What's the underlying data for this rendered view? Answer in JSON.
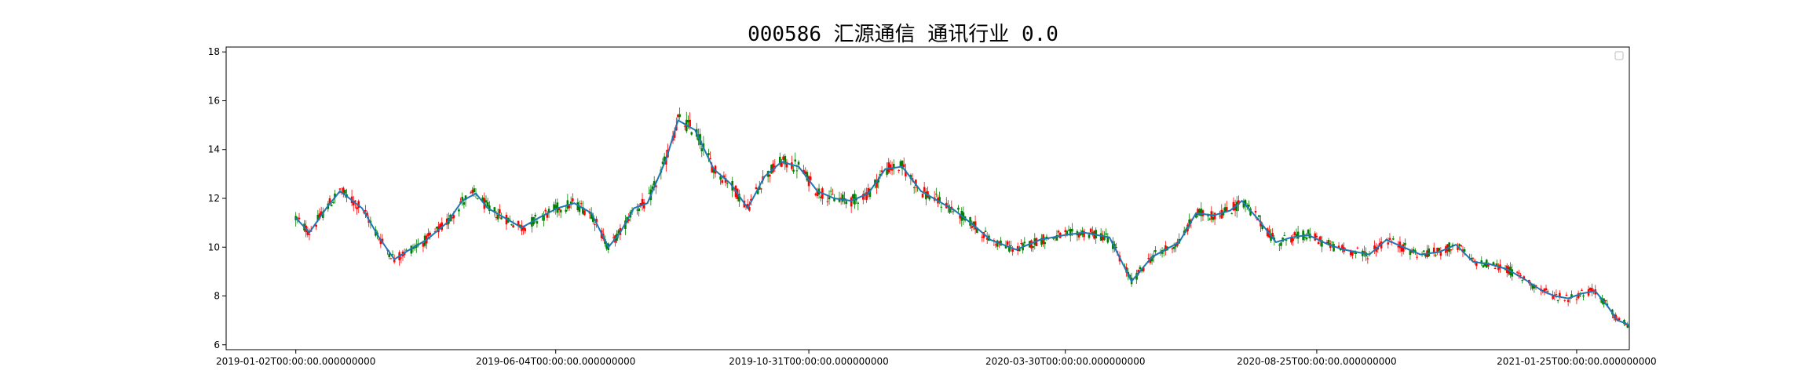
{
  "chart_data": {
    "type": "candlestick",
    "title": "000586 汇源通信 通讯行业 0.0",
    "xlabel": "",
    "ylabel": "",
    "ylim": [
      5.8,
      18.2
    ],
    "x_tick_labels": [
      "2019-01-02T00:00:00.000000000",
      "2019-06-04T00:00:00.000000000",
      "2019-10-31T00:00:00.000000000",
      "2020-03-30T00:00:00.000000000",
      "2020-08-25T00:00:00.000000000",
      "2021-01-25T00:00:00.000000000"
    ],
    "y_ticks": [
      6,
      8,
      10,
      12,
      14,
      16,
      18
    ],
    "x_range": [
      "2018-11-22",
      "2021-02-25"
    ],
    "legend": "top-right (empty box)",
    "grid": false,
    "colors": {
      "up": "#ff0000",
      "down": "#008000",
      "ma": "#1f77b4",
      "axes": "#000000"
    },
    "series": [
      {
        "name": "",
        "type": "line",
        "points": [
          [
            "2019-01-02",
            11.2
          ],
          [
            "2019-01-10",
            10.6
          ],
          [
            "2019-01-20",
            11.6
          ],
          [
            "2019-01-28",
            12.3
          ],
          [
            "2019-02-10",
            11.6
          ],
          [
            "2019-02-20",
            10.4
          ],
          [
            "2019-03-01",
            9.5
          ],
          [
            "2019-03-10",
            9.9
          ],
          [
            "2019-03-20",
            10.3
          ],
          [
            "2019-04-01",
            11.0
          ],
          [
            "2019-04-10",
            11.9
          ],
          [
            "2019-04-18",
            12.2
          ],
          [
            "2019-04-25",
            11.6
          ],
          [
            "2019-05-05",
            11.2
          ],
          [
            "2019-05-15",
            10.8
          ],
          [
            "2019-05-25",
            11.2
          ],
          [
            "2019-06-05",
            11.6
          ],
          [
            "2019-06-15",
            11.8
          ],
          [
            "2019-06-25",
            11.4
          ],
          [
            "2019-07-05",
            10.0
          ],
          [
            "2019-07-12",
            10.6
          ],
          [
            "2019-07-20",
            11.6
          ],
          [
            "2019-07-28",
            11.8
          ],
          [
            "2019-08-08",
            13.6
          ],
          [
            "2019-08-15",
            15.2
          ],
          [
            "2019-08-25",
            14.8
          ],
          [
            "2019-09-05",
            13.2
          ],
          [
            "2019-09-15",
            12.6
          ],
          [
            "2019-09-25",
            11.6
          ],
          [
            "2019-10-05",
            12.9
          ],
          [
            "2019-10-15",
            13.5
          ],
          [
            "2019-10-25",
            13.3
          ],
          [
            "2019-11-05",
            12.3
          ],
          [
            "2019-11-15",
            12.0
          ],
          [
            "2019-11-25",
            11.9
          ],
          [
            "2019-12-05",
            12.2
          ],
          [
            "2019-12-15",
            13.2
          ],
          [
            "2019-12-25",
            13.3
          ],
          [
            "2020-01-05",
            12.3
          ],
          [
            "2020-01-15",
            11.9
          ],
          [
            "2020-01-25",
            11.5
          ],
          [
            "2020-02-05",
            10.9
          ],
          [
            "2020-02-15",
            10.3
          ],
          [
            "2020-03-01",
            9.9
          ],
          [
            "2020-03-15",
            10.3
          ],
          [
            "2020-03-30",
            10.5
          ],
          [
            "2020-04-10",
            10.6
          ],
          [
            "2020-04-25",
            10.4
          ],
          [
            "2020-05-08",
            8.6
          ],
          [
            "2020-05-20",
            9.6
          ],
          [
            "2020-06-05",
            10.2
          ],
          [
            "2020-06-15",
            11.4
          ],
          [
            "2020-06-25",
            11.3
          ],
          [
            "2020-07-05",
            11.5
          ],
          [
            "2020-07-12",
            11.9
          ],
          [
            "2020-07-22",
            11.1
          ],
          [
            "2020-08-01",
            10.2
          ],
          [
            "2020-08-10",
            10.4
          ],
          [
            "2020-08-20",
            10.5
          ],
          [
            "2020-09-01",
            10.1
          ],
          [
            "2020-09-10",
            9.9
          ],
          [
            "2020-09-25",
            9.7
          ],
          [
            "2020-10-05",
            10.3
          ],
          [
            "2020-10-15",
            10.0
          ],
          [
            "2020-10-25",
            9.7
          ],
          [
            "2020-11-05",
            9.8
          ],
          [
            "2020-11-15",
            10.1
          ],
          [
            "2020-11-25",
            9.4
          ],
          [
            "2020-12-05",
            9.3
          ],
          [
            "2020-12-15",
            9.1
          ],
          [
            "2020-12-25",
            8.7
          ],
          [
            "2021-01-05",
            8.2
          ],
          [
            "2021-01-12",
            8.0
          ],
          [
            "2021-01-20",
            7.9
          ],
          [
            "2021-01-28",
            8.1
          ],
          [
            "2021-02-05",
            8.2
          ],
          [
            "2021-02-12",
            7.6
          ],
          [
            "2021-02-18",
            7.0
          ],
          [
            "2021-02-22",
            6.9
          ],
          [
            "2021-02-25",
            6.8
          ]
        ]
      }
    ]
  }
}
